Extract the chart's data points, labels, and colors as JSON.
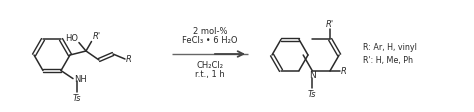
{
  "bg_color": "#ffffff",
  "line_color": "#2a2a2a",
  "arrow_color": "#555555",
  "fig_width": 4.74,
  "fig_height": 1.13,
  "dpi": 100,
  "reagent_line1": "2 mol-%",
  "reagent_line2": "FeCl₃ • 6 H₂O",
  "solvent_line1": "CH₂Cl₂",
  "solvent_line2": "r.t., 1 h",
  "r_label": "R: Ar, H, vinyl",
  "rprime_label": "R': H, Me, Ph"
}
